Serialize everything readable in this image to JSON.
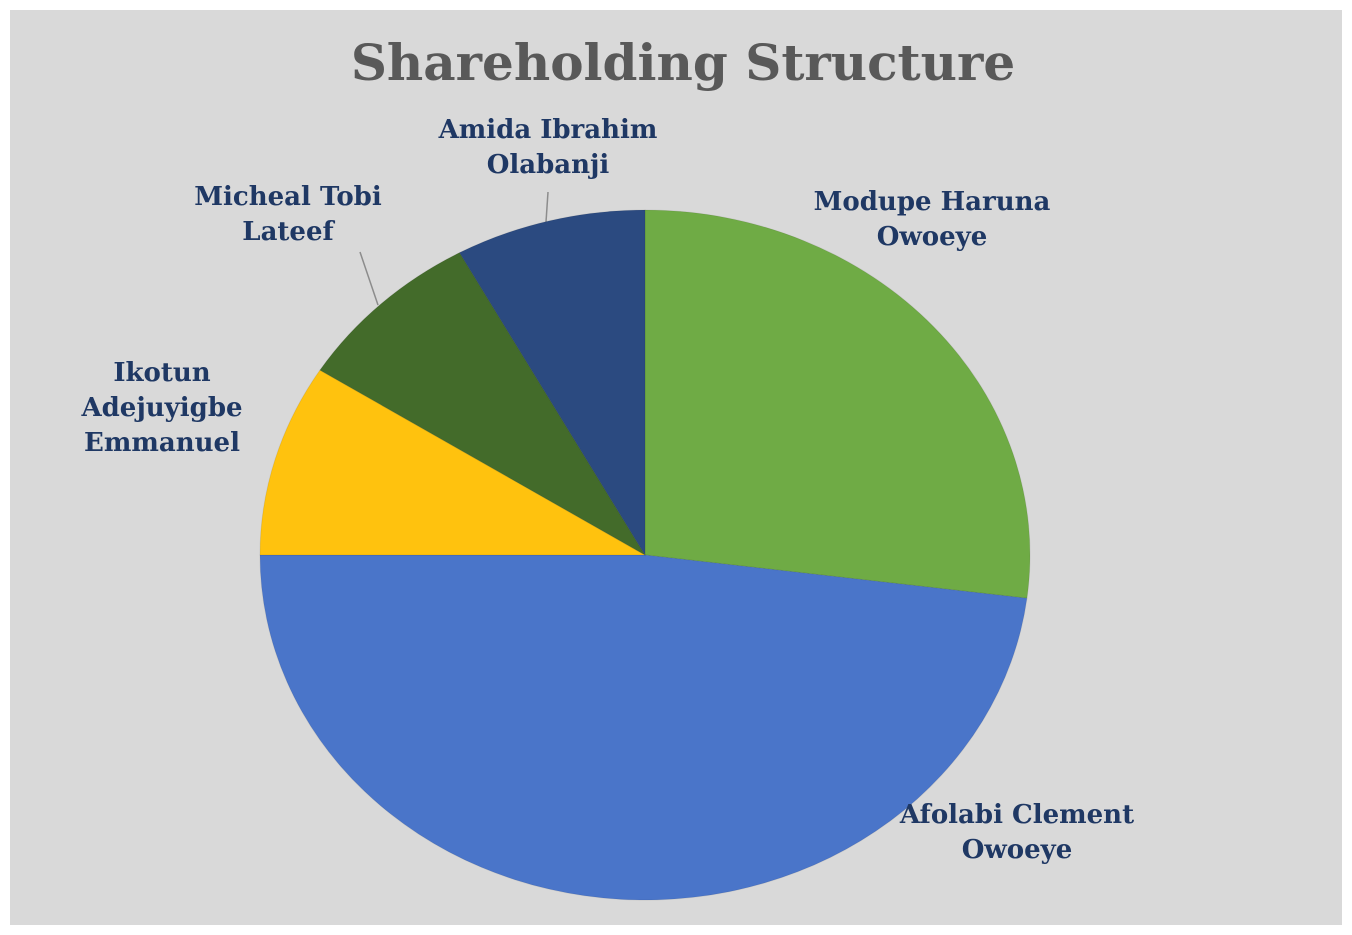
{
  "chart_data": {
    "type": "pie",
    "title": "Shareholding Structure",
    "categories": [
      "Modupe Haruna Owoeye",
      "Afolabi Clement Owoeye",
      "Ikotun Adejuyigbe Emmanuel",
      "Micheal Tobi Lateef",
      "Amida Ibrahim Olabanji"
    ],
    "values": [
      27,
      48,
      9,
      8,
      8
    ],
    "colors": [
      "#6fab45",
      "#4a75c9",
      "#ffc20e",
      "#436b2a",
      "#2b4a80"
    ]
  }
}
